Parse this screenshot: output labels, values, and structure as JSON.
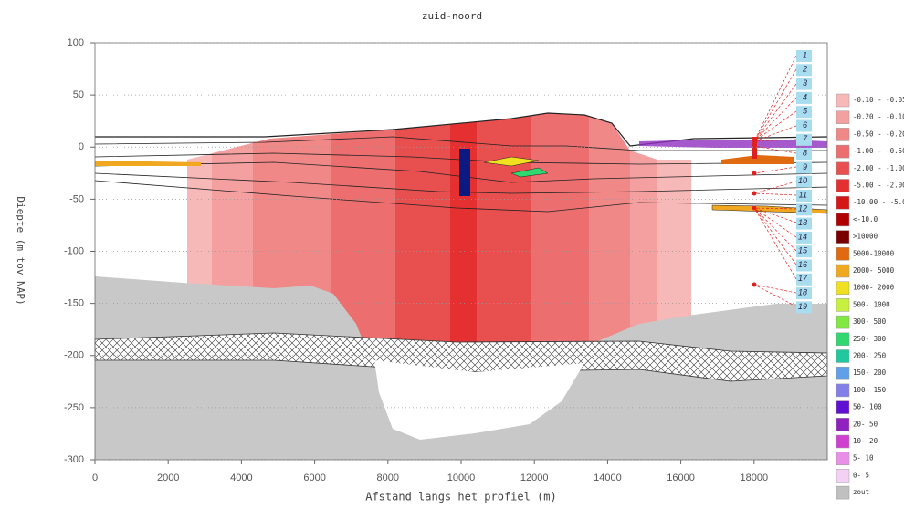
{
  "chart_data": {
    "type": "cross-section",
    "title": "zuid-noord",
    "x_label": "Afstand langs het profiel (m)",
    "y_label": "Diepte (m tov NAP)",
    "xlim": [
      0,
      20000
    ],
    "ylim": [
      -300,
      100
    ],
    "xticks": [
      0,
      2000,
      4000,
      6000,
      8000,
      10000,
      12000,
      14000,
      16000,
      18000
    ],
    "yticks": [
      -300,
      -250,
      -200,
      -150,
      -100,
      -50,
      0,
      50,
      100
    ],
    "grid": true,
    "legend": [
      {
        "label": "-0.10 - -0.05",
        "color": "#f7b8b8"
      },
      {
        "label": "-0.20 - -0.10",
        "color": "#f4a0a0"
      },
      {
        "label": "-0.50 - -0.20",
        "color": "#f08888"
      },
      {
        "label": "-1.00 - -0.50",
        "color": "#ec6e6e"
      },
      {
        "label": "-2.00 - -1.00",
        "color": "#e85050"
      },
      {
        "label": "-5.00 - -2.00",
        "color": "#e43030"
      },
      {
        "label": "-10.00 - -5.00",
        "color": "#d41818"
      },
      {
        "label": "<-10.0",
        "color": "#b00000"
      },
      {
        "label": ">10000",
        "color": "#7a0000"
      },
      {
        "label": "5000-10000",
        "color": "#e06a10"
      },
      {
        "label": "2000- 5000",
        "color": "#f0a820"
      },
      {
        "label": "1000- 2000",
        "color": "#f0e020"
      },
      {
        "label": "500- 1000",
        "color": "#c8f040"
      },
      {
        "label": "300- 500",
        "color": "#80e840"
      },
      {
        "label": "250- 300",
        "color": "#30d870"
      },
      {
        "label": "200- 250",
        "color": "#20c8a0"
      },
      {
        "label": "150- 200",
        "color": "#60a0e8"
      },
      {
        "label": "100- 150",
        "color": "#8080e8"
      },
      {
        "label": "50- 100",
        "color": "#6010d0"
      },
      {
        "label": "20- 50",
        "color": "#9020c0"
      },
      {
        "label": "10- 20",
        "color": "#d040d0"
      },
      {
        "label": "5- 10",
        "color": "#e890e8"
      },
      {
        "label": "0- 5",
        "color": "#f4d0f4"
      },
      {
        "label": "zout",
        "color": "#c0c0c0"
      }
    ],
    "wells": [
      "1",
      "2",
      "3",
      "4",
      "5",
      "6",
      "7",
      "8",
      "9",
      "10",
      "11",
      "12",
      "13",
      "14",
      "15",
      "16",
      "17",
      "18",
      "19"
    ]
  }
}
